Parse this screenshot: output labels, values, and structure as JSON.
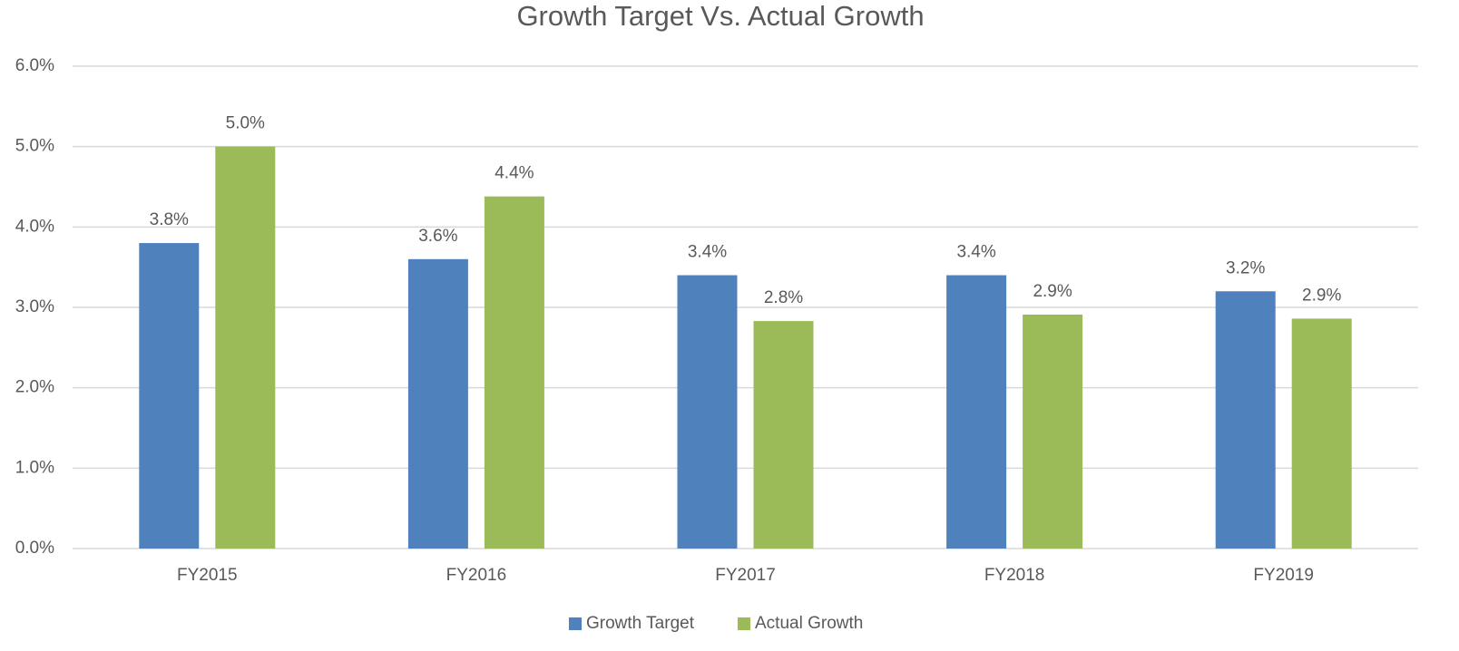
{
  "chart_data": {
    "type": "bar",
    "title": "Growth Target Vs. Actual Growth",
    "categories": [
      "FY2015",
      "FY2016",
      "FY2017",
      "FY2018",
      "FY2019"
    ],
    "series": [
      {
        "name": "Growth Target",
        "color": "#4f81bd",
        "values": [
          3.8,
          3.6,
          3.4,
          3.4,
          3.2
        ],
        "value_labels": [
          "3.8%",
          "3.6%",
          "3.4%",
          "3.4%",
          "3.2%"
        ]
      },
      {
        "name": "Actual Growth",
        "color": "#9bbb59",
        "values": [
          5.0,
          4.38,
          2.83,
          2.91,
          2.86
        ],
        "value_labels": [
          "5.0%",
          "4.4%",
          "2.8%",
          "2.9%",
          "2.9%"
        ]
      }
    ],
    "ylim": [
      0,
      6
    ],
    "yticks": [
      {
        "value": 0,
        "label": "0.0%"
      },
      {
        "value": 1,
        "label": "1.0%"
      },
      {
        "value": 2,
        "label": "2.0%"
      },
      {
        "value": 3,
        "label": "3.0%"
      },
      {
        "value": 4,
        "label": "4.0%"
      },
      {
        "value": 5,
        "label": "5.0%"
      },
      {
        "value": 6,
        "label": "6.0%"
      }
    ],
    "grid": true,
    "legend": "bottom"
  }
}
